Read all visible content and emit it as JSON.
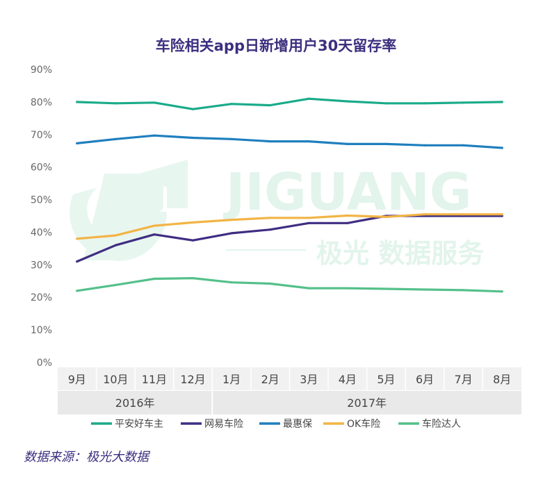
{
  "chart_data": {
    "type": "line",
    "title": "车险相关app日新增用户30天留存率",
    "categories": [
      "9月",
      "10月",
      "11月",
      "12月",
      "1月",
      "2月",
      "3月",
      "4月",
      "5月",
      "6月",
      "7月",
      "8月"
    ],
    "year_groups": [
      {
        "label": "2016年",
        "span": 4
      },
      {
        "label": "2017年",
        "span": 8
      }
    ],
    "ylim": [
      0,
      90
    ],
    "yticks": [
      0,
      10,
      20,
      30,
      40,
      50,
      60,
      70,
      80,
      90
    ],
    "ytick_labels": [
      "0%",
      "10%",
      "20%",
      "30%",
      "40%",
      "50%",
      "60%",
      "70%",
      "80%",
      "90%"
    ],
    "series": [
      {
        "name": "平安好车主",
        "color": "#1aab8a",
        "values": [
          80,
          79.6,
          79.8,
          77.8,
          79.4,
          79,
          81,
          80.2,
          79.6,
          79.6,
          79.8,
          80
        ]
      },
      {
        "name": "网易车险",
        "color": "#3f2d82",
        "values": [
          31,
          36,
          39.3,
          37.5,
          39.7,
          40.8,
          42.8,
          42.8,
          45,
          45,
          45,
          45
        ]
      },
      {
        "name": "最惠保",
        "color": "#1f7fbe",
        "values": [
          67.3,
          68.6,
          69.7,
          69,
          68.6,
          67.9,
          67.9,
          67.1,
          67.1,
          66.7,
          66.7,
          65.9
        ]
      },
      {
        "name": "OK车险",
        "color": "#f2b445",
        "values": [
          38,
          39,
          42,
          43,
          43.8,
          44.4,
          44.4,
          45.1,
          44.7,
          45.5,
          45.5,
          45.5
        ]
      },
      {
        "name": "车险达人",
        "color": "#55c08a",
        "values": [
          22,
          23.8,
          25.7,
          25.9,
          24.6,
          24.2,
          22.8,
          22.8,
          22.6,
          22.4,
          22.2,
          21.8
        ]
      }
    ]
  },
  "watermark": {
    "brand": "JIGUANG",
    "subtitle": "极光 数据服务"
  },
  "source": "数据来源：极光大数据"
}
